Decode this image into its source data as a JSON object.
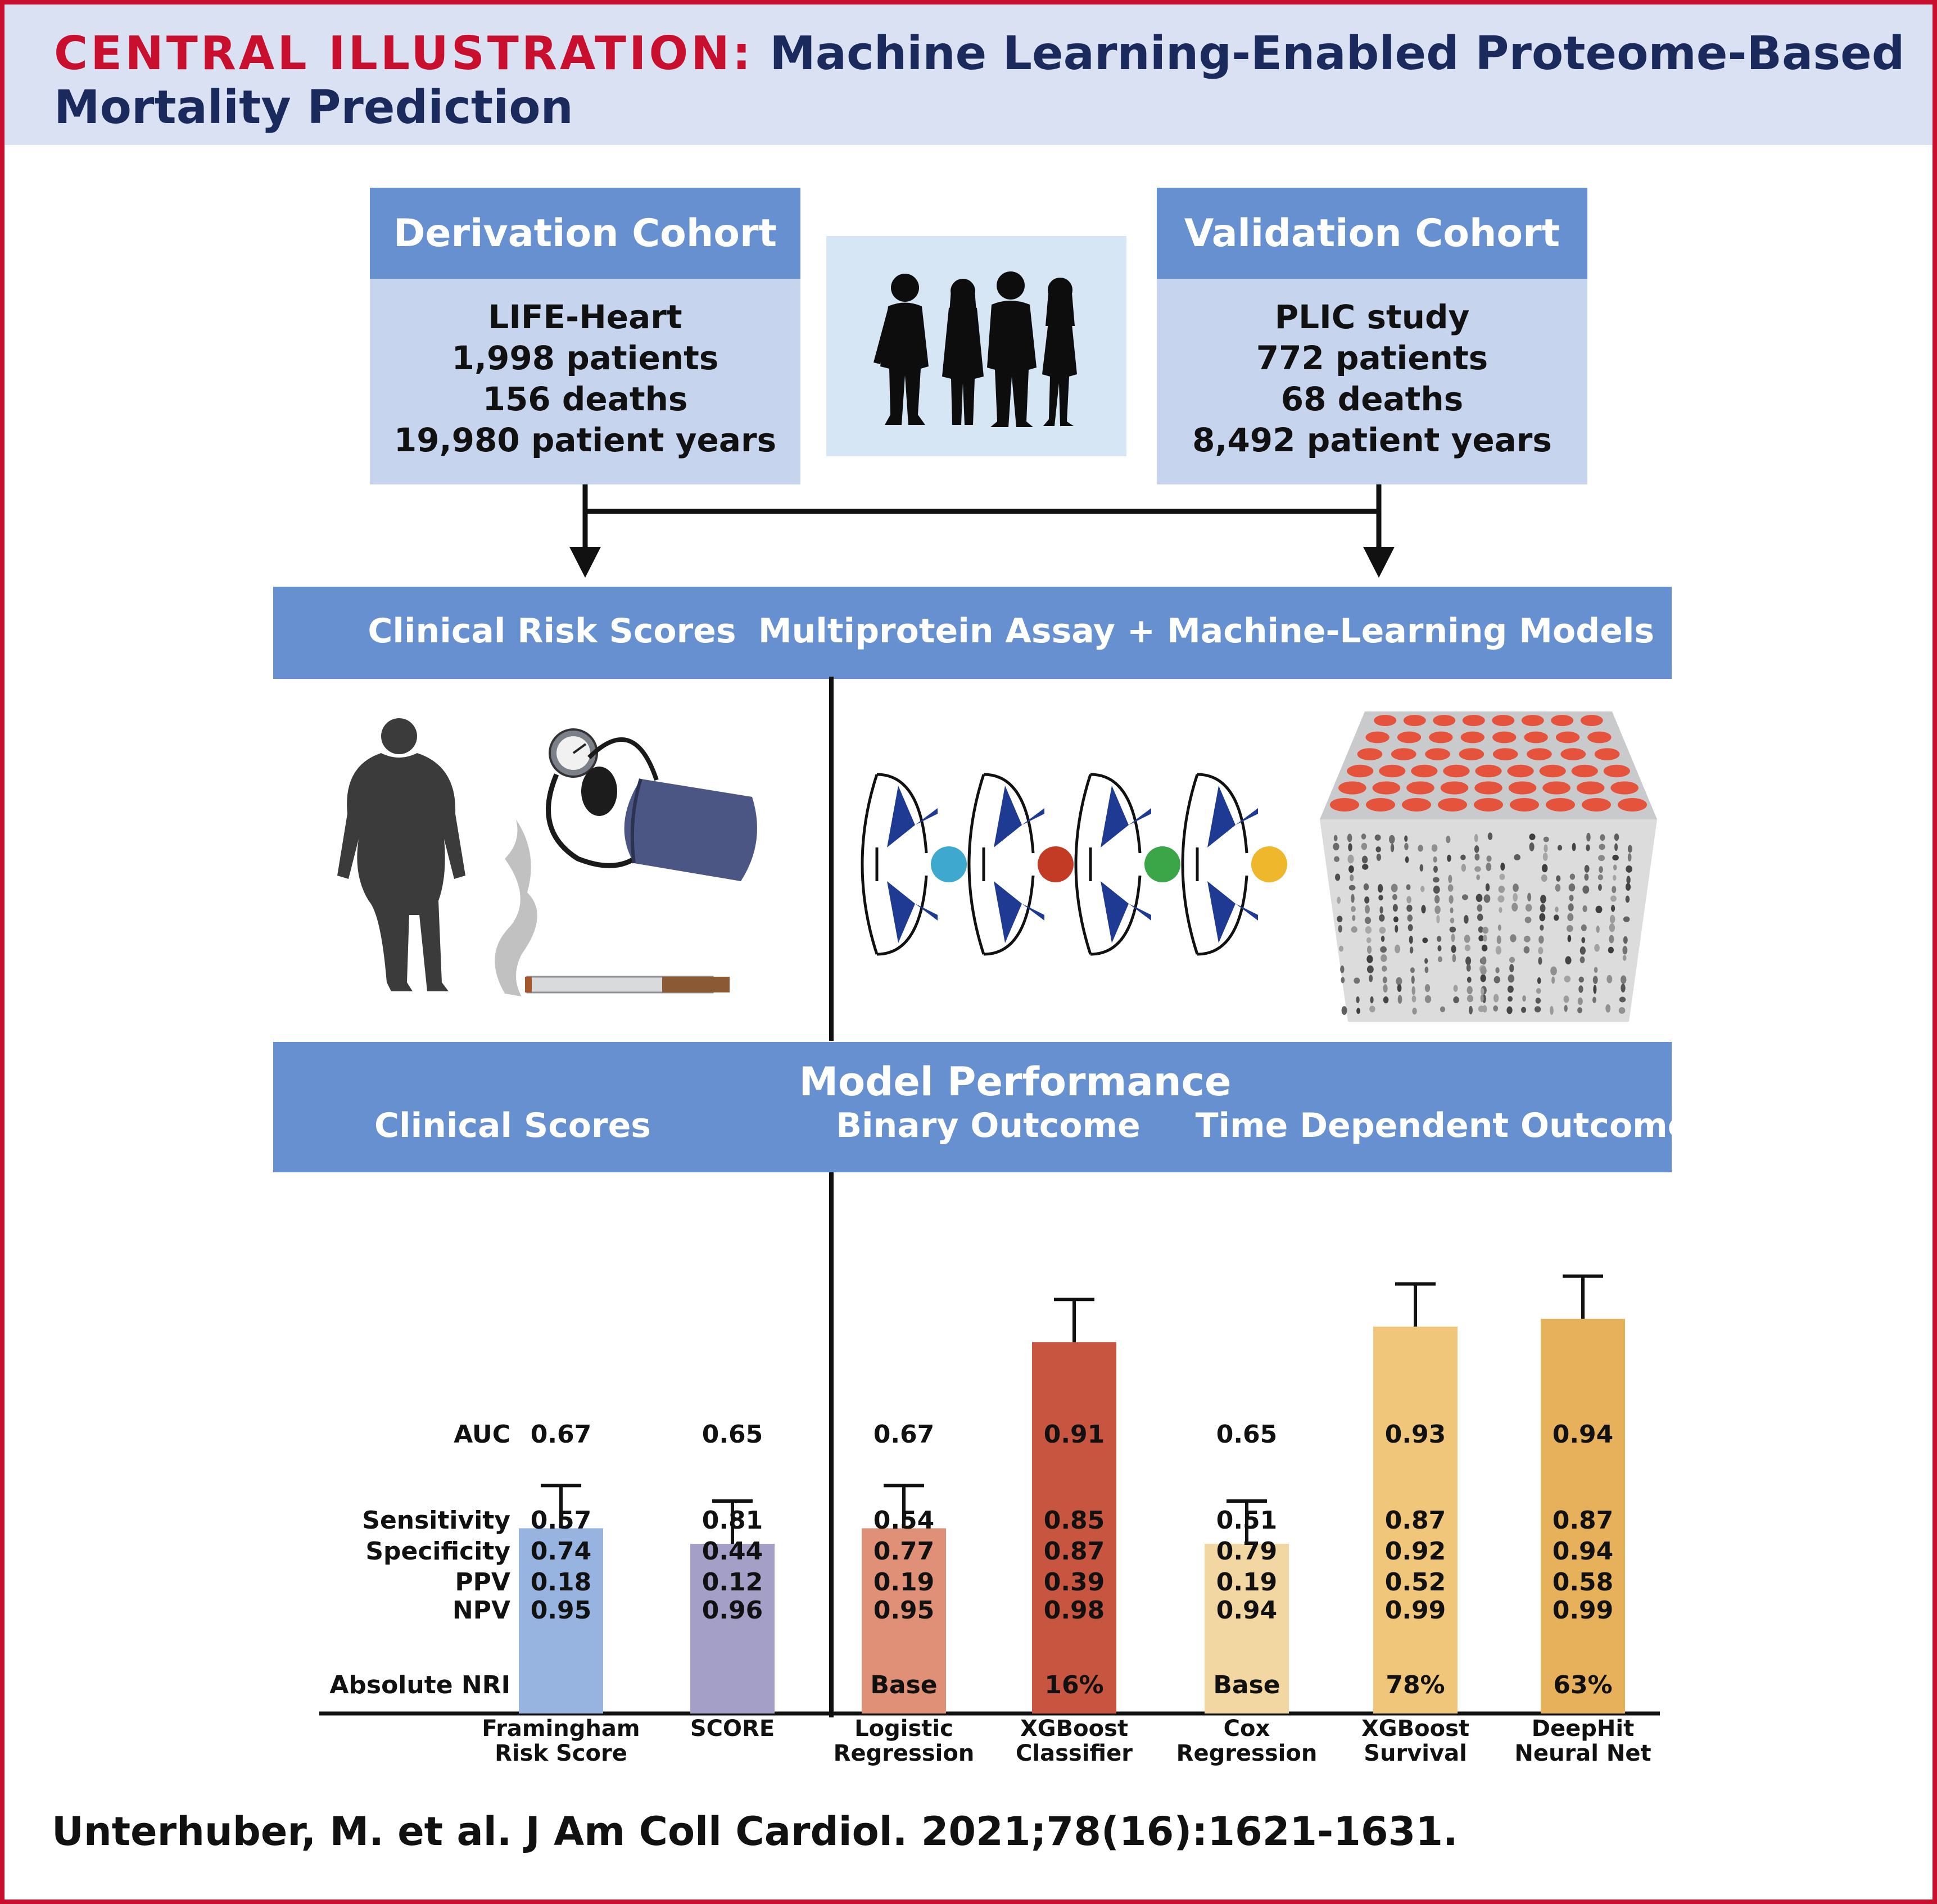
{
  "header": {
    "label": "CENTRAL ILLUSTRATION:",
    "title_line1": "Machine Learning-Enabled Proteome-Based",
    "title_line2": "Mortality Prediction"
  },
  "derivation": {
    "title": "Derivation Cohort",
    "lines": [
      "LIFE-Heart",
      "1,998 patients",
      "156 deaths",
      "19,980 patient years"
    ]
  },
  "validation": {
    "title": "Validation Cohort",
    "lines": [
      "PLIC study",
      "772 patients",
      "68 deaths",
      "8,492 patient years"
    ]
  },
  "methods": {
    "left": "Clinical Risk Scores",
    "right": "Multiprotein Assay + Machine-Learning Models"
  },
  "performance": {
    "title": "Model Performance",
    "left": "Clinical Scores",
    "middle": "Binary Outcome",
    "right": "Time Dependent Outcome"
  },
  "row_labels": {
    "auc": "AUC",
    "sensitivity": "Sensitivity",
    "specificity": "Specificity",
    "ppv": "PPV",
    "npv": "NPV",
    "nri": "Absolute NRI"
  },
  "models": [
    {
      "name": "Framingham\nRisk Score",
      "color": "#97b4e0",
      "auc": "0.67",
      "sensitivity": "0.57",
      "specificity": "0.74",
      "ppv": "0.18",
      "npv": "0.95",
      "nri": ""
    },
    {
      "name": "SCORE",
      "color": "#a39fc7",
      "auc": "0.65",
      "sensitivity": "0.81",
      "specificity": "0.44",
      "ppv": "0.12",
      "npv": "0.96",
      "nri": ""
    },
    {
      "name": "Logistic\nRegression",
      "color": "#df9076",
      "auc": "0.67",
      "sensitivity": "0.54",
      "specificity": "0.77",
      "ppv": "0.19",
      "npv": "0.95",
      "nri": "Base"
    },
    {
      "name": "XGBoost\nClassifier",
      "color": "#c8553f",
      "auc": "0.91",
      "sensitivity": "0.85",
      "specificity": "0.87",
      "ppv": "0.39",
      "npv": "0.98",
      "nri": "16%"
    },
    {
      "name": "Cox\nRegression",
      "color": "#f2d7a2",
      "auc": "0.65",
      "sensitivity": "0.51",
      "specificity": "0.79",
      "ppv": "0.19",
      "npv": "0.94",
      "nri": "Base"
    },
    {
      "name": "XGBoost\nSurvival",
      "color": "#f0c77a",
      "auc": "0.93",
      "sensitivity": "0.87",
      "specificity": "0.92",
      "ppv": "0.52",
      "npv": "0.99",
      "nri": "78%"
    },
    {
      "name": "DeepHit\nNeural Net",
      "color": "#e7b15c",
      "auc": "0.94",
      "sensitivity": "0.87",
      "specificity": "0.94",
      "ppv": "0.58",
      "npv": "0.99",
      "nri": "63%"
    }
  ],
  "citation": "Unterhuber, M. et al. J Am Coll Cardiol. 2021;78(16):1621-1631.",
  "icons": [
    "people-silhouettes-icon",
    "obese-person-icon",
    "blood-pressure-cuff-icon",
    "cigarette-icon",
    "protein-binder-icon",
    "assay-plate-icon"
  ]
}
